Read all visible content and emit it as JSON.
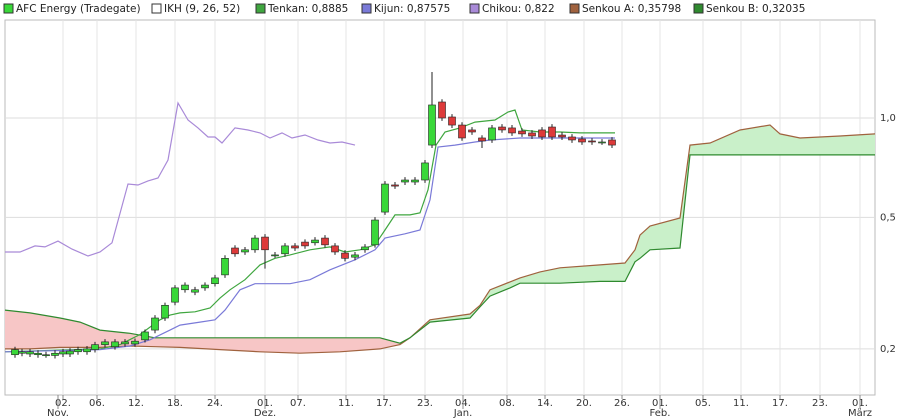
{
  "chart_data": {
    "type": "candlestick",
    "log_scale": true,
    "grid": true,
    "xlim": [
      0,
      87
    ],
    "ylim": [
      0.145,
      1.98
    ],
    "yticks": [
      {
        "value": 0.2,
        "label": "0,2"
      },
      {
        "value": 0.5,
        "label": "0,5"
      },
      {
        "value": 1.0,
        "label": "1,0"
      }
    ],
    "xticks": [
      {
        "value": 5.8,
        "label": "02."
      },
      {
        "value": 9.2,
        "label": "06."
      },
      {
        "value": 13.1,
        "label": "12."
      },
      {
        "value": 17,
        "label": "18."
      },
      {
        "value": 21,
        "label": "24."
      },
      {
        "value": 26,
        "label": "01."
      },
      {
        "value": 29.3,
        "label": "07."
      },
      {
        "value": 34.1,
        "label": "11."
      },
      {
        "value": 37.9,
        "label": "17."
      },
      {
        "value": 42,
        "label": "23."
      },
      {
        "value": 45.8,
        "label": "04."
      },
      {
        "value": 50.2,
        "label": "08."
      },
      {
        "value": 54,
        "label": "14."
      },
      {
        "value": 57.9,
        "label": "20."
      },
      {
        "value": 61.7,
        "label": "26."
      },
      {
        "value": 65.5,
        "label": "01."
      },
      {
        "value": 69.8,
        "label": "05."
      },
      {
        "value": 73.6,
        "label": "11."
      },
      {
        "value": 77.5,
        "label": "17."
      },
      {
        "value": 81.5,
        "label": "23."
      },
      {
        "value": 85.5,
        "label": "01."
      }
    ],
    "month_ticks": [
      {
        "value": 5.3,
        "label": "Nov."
      },
      {
        "value": 26,
        "label": "Dez."
      },
      {
        "value": 45.8,
        "label": "Jan."
      },
      {
        "value": 65.5,
        "label": "Feb."
      },
      {
        "value": 85.5,
        "label": "März"
      }
    ],
    "candles": {
      "name": "AFC Energy (Tradegate)",
      "up_color": "#39d839",
      "down_color": "#dd3a3a",
      "x": [
        1,
        1.7,
        2.5,
        3.3,
        4.1,
        5,
        5.8,
        6.5,
        7.3,
        8.2,
        9,
        10,
        11,
        12,
        13,
        14,
        15,
        16,
        17,
        18,
        19,
        20,
        21,
        22,
        23,
        24,
        25,
        26,
        27,
        28,
        29,
        30,
        31,
        32,
        33,
        34,
        35,
        36,
        37,
        38,
        39,
        40,
        41,
        42,
        42.7,
        43.7,
        44.7,
        45.7,
        46.7,
        47.7,
        48.7,
        49.7,
        50.7,
        51.7,
        52.7,
        53.7,
        54.7,
        55.7,
        56.7,
        57.7,
        58.7,
        59.7,
        60.7
      ],
      "open": [
        0.192,
        0.194,
        0.193,
        0.192,
        0.192,
        0.191,
        0.193,
        0.193,
        0.196,
        0.196,
        0.199,
        0.206,
        0.203,
        0.207,
        0.207,
        0.213,
        0.228,
        0.248,
        0.277,
        0.302,
        0.297,
        0.306,
        0.315,
        0.335,
        0.404,
        0.393,
        0.399,
        0.436,
        0.385,
        0.388,
        0.41,
        0.421,
        0.419,
        0.433,
        0.41,
        0.39,
        0.379,
        0.399,
        0.413,
        0.519,
        0.627,
        0.64,
        0.64,
        0.649,
        0.828,
        1.118,
        1.007,
        0.952,
        0.92,
        0.87,
        0.858,
        0.939,
        0.933,
        0.913,
        0.901,
        0.92,
        0.939,
        0.888,
        0.876,
        0.864,
        0.852,
        0.846,
        0.858
      ],
      "high": [
        0.203,
        0.2,
        0.2,
        0.198,
        0.196,
        0.198,
        0.2,
        0.201,
        0.203,
        0.204,
        0.21,
        0.214,
        0.214,
        0.214,
        0.215,
        0.229,
        0.253,
        0.276,
        0.312,
        0.318,
        0.308,
        0.318,
        0.335,
        0.384,
        0.412,
        0.407,
        0.442,
        0.445,
        0.393,
        0.418,
        0.418,
        0.429,
        0.436,
        0.442,
        0.418,
        0.398,
        0.393,
        0.415,
        0.501,
        0.644,
        0.64,
        0.662,
        0.662,
        0.746,
        1.378,
        1.14,
        1.027,
        0.971,
        0.938,
        0.887,
        0.952,
        0.958,
        0.952,
        0.931,
        0.919,
        0.938,
        0.958,
        0.906,
        0.894,
        0.881,
        0.869,
        0.863,
        0.875
      ],
      "low": [
        0.188,
        0.19,
        0.189,
        0.188,
        0.188,
        0.187,
        0.189,
        0.189,
        0.192,
        0.192,
        0.195,
        0.202,
        0.199,
        0.203,
        0.203,
        0.209,
        0.223,
        0.243,
        0.271,
        0.296,
        0.291,
        0.3,
        0.309,
        0.328,
        0.38,
        0.385,
        0.391,
        0.35,
        0.377,
        0.38,
        0.396,
        0.402,
        0.411,
        0.405,
        0.385,
        0.368,
        0.371,
        0.391,
        0.405,
        0.509,
        0.61,
        0.627,
        0.627,
        0.636,
        0.811,
        0.98,
        0.933,
        0.853,
        0.889,
        0.811,
        0.841,
        0.902,
        0.883,
        0.877,
        0.864,
        0.858,
        0.858,
        0.858,
        0.841,
        0.829,
        0.829,
        0.829,
        0.811
      ],
      "close": [
        0.199,
        0.196,
        0.196,
        0.194,
        0.192,
        0.194,
        0.196,
        0.197,
        0.199,
        0.2,
        0.206,
        0.21,
        0.21,
        0.21,
        0.211,
        0.225,
        0.248,
        0.271,
        0.306,
        0.312,
        0.302,
        0.312,
        0.328,
        0.376,
        0.388,
        0.399,
        0.433,
        0.399,
        0.385,
        0.41,
        0.404,
        0.41,
        0.427,
        0.413,
        0.393,
        0.376,
        0.385,
        0.407,
        0.491,
        0.631,
        0.622,
        0.649,
        0.649,
        0.731,
        1.095,
        1.0,
        0.952,
        0.87,
        0.907,
        0.852,
        0.933,
        0.92,
        0.901,
        0.895,
        0.882,
        0.876,
        0.876,
        0.876,
        0.858,
        0.846,
        0.846,
        0.846,
        0.828
      ]
    },
    "indicator": {
      "name": "IKH (9, 26, 52)",
      "color": "#ffffff"
    },
    "lines": [
      {
        "name": "Tenkan: 0,8885",
        "color": "#3fa63f",
        "x": [
          0,
          9.5,
          11.5,
          13.5,
          15.5,
          16.5,
          17.5,
          19,
          20.5,
          21.5,
          22.5,
          24,
          25.5,
          27,
          28.5,
          30.5,
          32.5,
          34,
          35.5,
          37,
          38,
          39,
          40.5,
          41.5,
          42.3,
          43.1,
          44,
          45.5,
          47,
          49,
          50.3,
          51,
          51.7,
          53.5,
          55.5,
          57.5,
          59.5,
          61
        ],
        "values": [
          0.196,
          0.2,
          0.206,
          0.221,
          0.245,
          0.253,
          0.257,
          0.259,
          0.266,
          0.285,
          0.302,
          0.324,
          0.359,
          0.376,
          0.385,
          0.399,
          0.407,
          0.393,
          0.399,
          0.413,
          0.458,
          0.509,
          0.509,
          0.516,
          0.606,
          0.828,
          0.907,
          0.933,
          0.972,
          0.986,
          1.043,
          1.057,
          0.92,
          0.907,
          0.907,
          0.901,
          0.901,
          0.901
        ]
      },
      {
        "name": "Kijun: 0,87575",
        "color": "#7a7ad8",
        "x": [
          0,
          9.5,
          12.5,
          14.5,
          16.5,
          17.5,
          19.5,
          21,
          22,
          23.5,
          25,
          26.5,
          28.5,
          30.5,
          32.5,
          35,
          37,
          38,
          40,
          41.5,
          42.5,
          43.3,
          45,
          47,
          48.5,
          51.5,
          55.5,
          59.5,
          61
        ],
        "values": [
          0.196,
          0.199,
          0.204,
          0.213,
          0.228,
          0.236,
          0.241,
          0.245,
          0.262,
          0.302,
          0.315,
          0.315,
          0.315,
          0.324,
          0.347,
          0.372,
          0.399,
          0.433,
          0.446,
          0.458,
          0.565,
          0.817,
          0.828,
          0.846,
          0.858,
          0.87,
          0.87,
          0.87,
          0.87
        ]
      },
      {
        "name": "Chikou: 0,822",
        "color": "#a98ad8",
        "x": [
          0,
          1.5,
          3,
          4,
          5.3,
          6.7,
          8.3,
          9.5,
          10.7,
          12.3,
          13.3,
          14.3,
          15.3,
          16.3,
          17.3,
          18.3,
          19.3,
          20.3,
          21,
          21.7,
          23,
          24.3,
          25.5,
          26.5,
          27.7,
          28.7,
          30,
          31.3,
          32.5,
          33.7,
          35
        ],
        "values": [
          0.393,
          0.393,
          0.41,
          0.407,
          0.424,
          0.401,
          0.382,
          0.393,
          0.419,
          0.631,
          0.627,
          0.645,
          0.658,
          0.746,
          1.11,
          0.986,
          0.933,
          0.876,
          0.876,
          0.84,
          0.933,
          0.92,
          0.901,
          0.87,
          0.901,
          0.87,
          0.888,
          0.858,
          0.84,
          0.846,
          0.828
        ]
      }
    ],
    "cloud": {
      "fill_up": "#c9f0c9",
      "fill_down": "#f7c6c6",
      "x": [
        0,
        2.5,
        5.5,
        7.5,
        9.5,
        12.5,
        15,
        17.5,
        21.5,
        25.5,
        29.5,
        33.5,
        37.5,
        39.5,
        40.5,
        42.5,
        46.5,
        47.5,
        48.5,
        50.5,
        51.5,
        53.5,
        55.5,
        59.5,
        62,
        63,
        63.5,
        64.5,
        67.5,
        68.5,
        70.5,
        73.5,
        76.5,
        77.5,
        79.5,
        83.5,
        87
      ],
      "series": [
        {
          "name": "Senkou A: 0,35798",
          "color": "#a0623e",
          "values": [
            0.2,
            0.2,
            0.202,
            0.202,
            0.202,
            0.204,
            0.203,
            0.202,
            0.199,
            0.196,
            0.194,
            0.196,
            0.2,
            0.206,
            0.216,
            0.245,
            0.255,
            0.271,
            0.302,
            0.319,
            0.328,
            0.342,
            0.352,
            0.359,
            0.364,
            0.399,
            0.442,
            0.471,
            0.498,
            0.828,
            0.84,
            0.92,
            0.952,
            0.895,
            0.87,
            0.882,
            0.895
          ]
        },
        {
          "name": "Senkou B: 0,32035",
          "color": "#2f8a2f",
          "values": [
            0.262,
            0.257,
            0.248,
            0.241,
            0.228,
            0.223,
            0.216,
            0.216,
            0.216,
            0.216,
            0.216,
            0.216,
            0.216,
            0.208,
            0.216,
            0.241,
            0.248,
            0.268,
            0.289,
            0.306,
            0.316,
            0.316,
            0.316,
            0.32,
            0.32,
            0.367,
            0.376,
            0.399,
            0.404,
            0.773,
            0.773,
            0.773,
            0.773,
            0.773,
            0.773,
            0.773,
            0.773
          ]
        }
      ]
    }
  }
}
